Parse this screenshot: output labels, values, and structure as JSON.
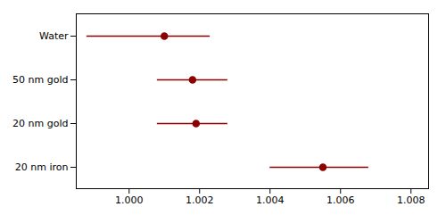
{
  "chart_data": {
    "type": "errorbar",
    "orientation": "horizontal",
    "categories": [
      "Water",
      "50 nm gold",
      "20 nm gold",
      "20 nm iron"
    ],
    "values": [
      1.001,
      1.0018,
      1.0019,
      1.0055
    ],
    "ci_low": [
      0.9988,
      1.0008,
      1.0008,
      1.004
    ],
    "ci_high": [
      1.0023,
      1.0028,
      1.0028,
      1.0068
    ],
    "color": "#8B0000",
    "marker": "circle",
    "xlim": [
      0.9985,
      1.0085
    ],
    "xticks": [
      {
        "value": 1.0,
        "label": "1.000"
      },
      1.002,
      1.004,
      1.006,
      1.008
    ]
  }
}
